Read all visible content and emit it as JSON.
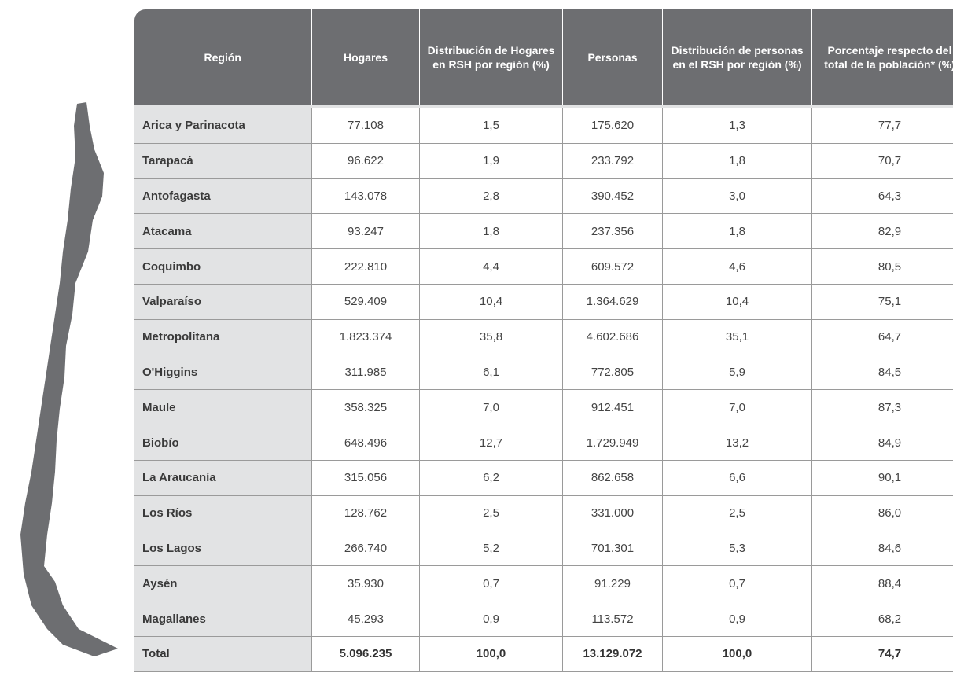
{
  "table": {
    "headers": [
      "Región",
      "Hogares",
      "Distribución de Hogares en RSH por región (%)",
      "Personas",
      "Distribución de personas en el RSH por región (%)",
      "Porcentaje respecto del total de la población* (%)"
    ],
    "rows": [
      [
        "Arica y Parinacota",
        "77.108",
        "1,5",
        "175.620",
        "1,3",
        "77,7"
      ],
      [
        "Tarapacá",
        "96.622",
        "1,9",
        "233.792",
        "1,8",
        "70,7"
      ],
      [
        "Antofagasta",
        "143.078",
        "2,8",
        "390.452",
        "3,0",
        "64,3"
      ],
      [
        "Atacama",
        "93.247",
        "1,8",
        "237.356",
        "1,8",
        "82,9"
      ],
      [
        "Coquimbo",
        "222.810",
        "4,4",
        "609.572",
        "4,6",
        "80,5"
      ],
      [
        "Valparaíso",
        "529.409",
        "10,4",
        "1.364.629",
        "10,4",
        "75,1"
      ],
      [
        "Metropolitana",
        "1.823.374",
        "35,8",
        "4.602.686",
        "35,1",
        "64,7"
      ],
      [
        "O'Higgins",
        "311.985",
        "6,1",
        "772.805",
        "5,9",
        "84,5"
      ],
      [
        "Maule",
        "358.325",
        "7,0",
        "912.451",
        "7,0",
        "87,3"
      ],
      [
        "Biobío",
        "648.496",
        "12,7",
        "1.729.949",
        "13,2",
        "84,9"
      ],
      [
        "La Araucanía",
        "315.056",
        "6,2",
        "862.658",
        "6,6",
        "90,1"
      ],
      [
        "Los Ríos",
        "128.762",
        "2,5",
        "331.000",
        "2,5",
        "86,0"
      ],
      [
        "Los Lagos",
        "266.740",
        "5,2",
        "701.301",
        "5,3",
        "84,6"
      ],
      [
        "Aysén",
        "35.930",
        "0,7",
        "91.229",
        "0,7",
        "88,4"
      ],
      [
        "Magallanes",
        "45.293",
        "0,9",
        "113.572",
        "0,9",
        "68,2"
      ],
      [
        "Total",
        "5.096.235",
        "100,0",
        "13.129.072",
        "100,0",
        "74,7"
      ]
    ]
  }
}
